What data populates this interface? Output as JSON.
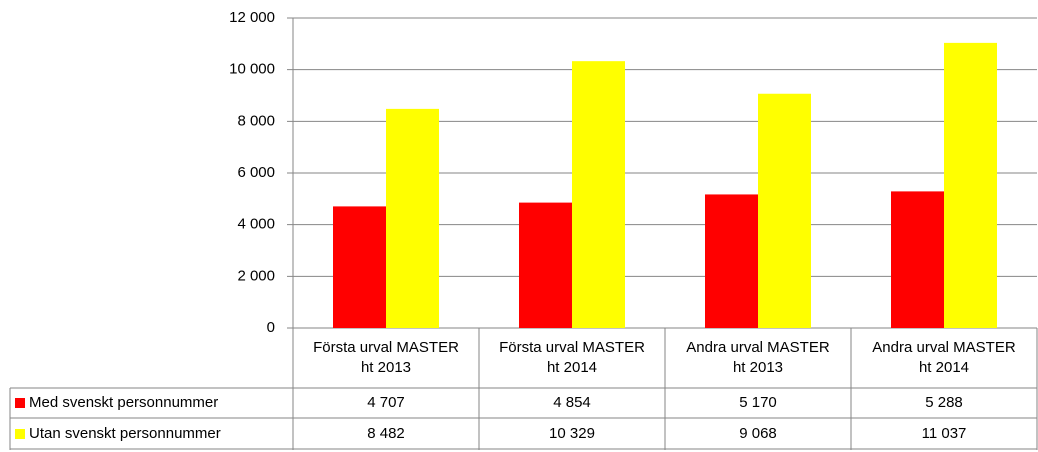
{
  "chart_data": {
    "type": "bar",
    "categories": [
      "Första urval MASTER ht 2013",
      "Första urval MASTER ht 2014",
      "Andra urval MASTER ht 2013",
      "Andra urval MASTER ht 2014"
    ],
    "series": [
      {
        "name": "Med svenskt personnummer",
        "color": "#ff0000",
        "values": [
          4707,
          4854,
          5170,
          5288
        ],
        "value_labels": [
          "4 707",
          "4 854",
          "5 170",
          "5 288"
        ]
      },
      {
        "name": "Utan svenskt personnummer",
        "color": "#ffff00",
        "values": [
          8482,
          10329,
          9068,
          11037
        ],
        "value_labels": [
          "8 482",
          "10 329",
          "9 068",
          "11 037"
        ]
      }
    ],
    "ylim": [
      0,
      12000
    ],
    "yticks": [
      0,
      {
        "value": 2000,
        "label": "2 000"
      },
      {
        "value": 4000,
        "label": "4 000"
      },
      {
        "value": 6000,
        "label": "6 000"
      },
      {
        "value": 8000,
        "label": "8 000"
      },
      {
        "value": 10000,
        "label": "10 000"
      },
      {
        "value": 12000,
        "label": "12 000"
      }
    ],
    "grid": true
  }
}
